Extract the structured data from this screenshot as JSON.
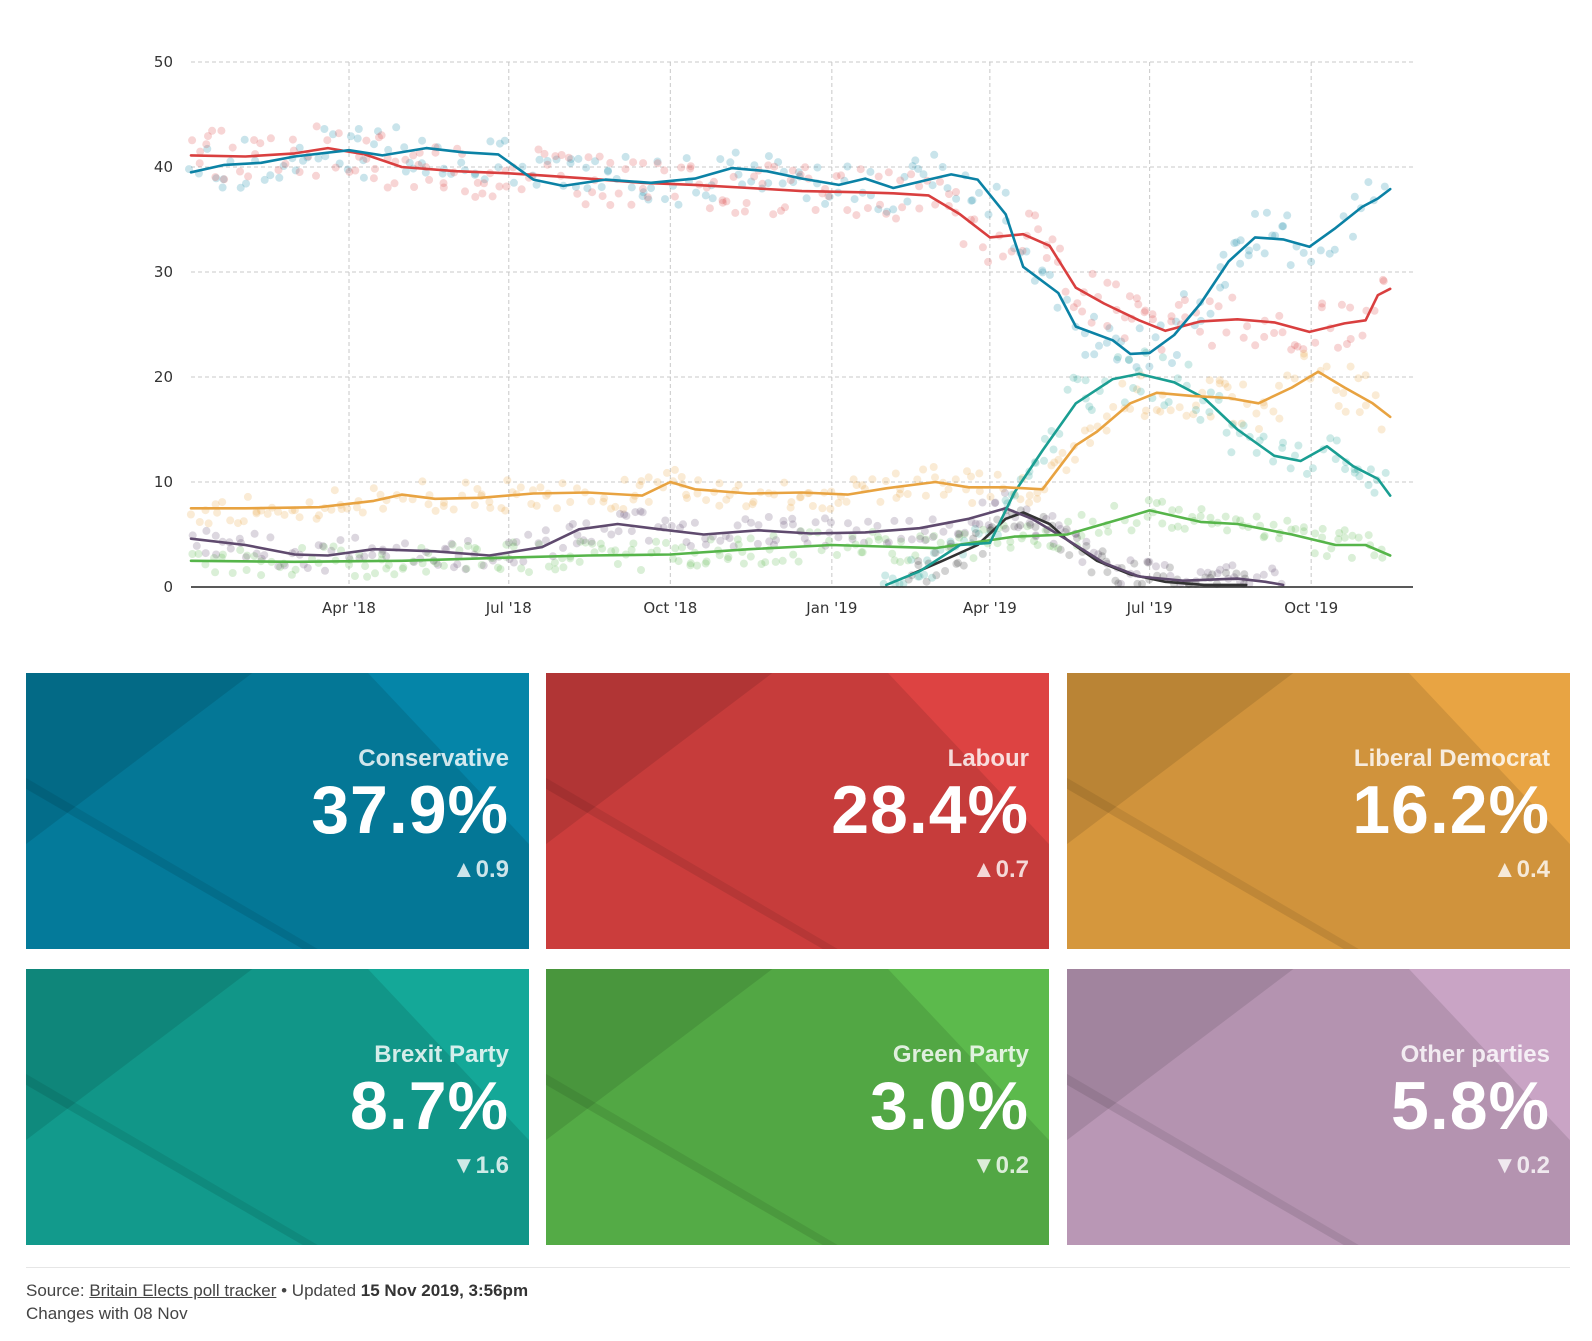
{
  "chart_data": {
    "type": "line",
    "title": "",
    "xlabel": "",
    "ylabel": "",
    "ylim": [
      0,
      50
    ],
    "xlim": [
      "2018-01-01",
      "2019-11-28"
    ],
    "yticks": [
      0,
      10,
      20,
      30,
      40,
      50
    ],
    "xticks": [
      {
        "date": "2018-04-01",
        "label": "Apr '18"
      },
      {
        "date": "2018-07-01",
        "label": "Jul '18"
      },
      {
        "date": "2018-10-01",
        "label": "Oct '18"
      },
      {
        "date": "2019-01-01",
        "label": "Jan '19"
      },
      {
        "date": "2019-04-01",
        "label": "Apr '19"
      },
      {
        "date": "2019-07-01",
        "label": "Jul '19"
      },
      {
        "date": "2019-10-01",
        "label": "Oct '19"
      }
    ],
    "grid": true,
    "legend": "none",
    "series": [
      {
        "color": "#0b82a5",
        "values": [
          [
            "2018-01-01",
            39.5
          ],
          [
            "2018-01-20",
            40.2
          ],
          [
            "2018-02-10",
            40.4
          ],
          [
            "2018-03-01",
            41.0
          ],
          [
            "2018-04-01",
            41.6
          ],
          [
            "2018-04-20",
            41.1
          ],
          [
            "2018-05-15",
            41.8
          ],
          [
            "2018-06-05",
            41.4
          ],
          [
            "2018-06-25",
            41.2
          ],
          [
            "2018-07-15",
            38.8
          ],
          [
            "2018-08-01",
            38.2
          ],
          [
            "2018-08-25",
            38.8
          ],
          [
            "2018-09-20",
            38.5
          ],
          [
            "2018-10-15",
            38.9
          ],
          [
            "2018-11-05",
            39.9
          ],
          [
            "2018-11-25",
            39.6
          ],
          [
            "2018-12-15",
            38.9
          ],
          [
            "2019-01-05",
            38.3
          ],
          [
            "2019-01-20",
            38.9
          ],
          [
            "2019-02-05",
            38.0
          ],
          [
            "2019-02-25",
            38.8
          ],
          [
            "2019-03-10",
            39.3
          ],
          [
            "2019-03-25",
            38.8
          ],
          [
            "2019-04-10",
            35.5
          ],
          [
            "2019-04-20",
            30.5
          ],
          [
            "2019-05-10",
            28.0
          ],
          [
            "2019-05-20",
            24.8
          ],
          [
            "2019-06-10",
            23.5
          ],
          [
            "2019-06-20",
            22.2
          ],
          [
            "2019-07-01",
            22.3
          ],
          [
            "2019-07-15",
            24.0
          ],
          [
            "2019-07-30",
            27.0
          ],
          [
            "2019-08-15",
            31.0
          ],
          [
            "2019-08-30",
            33.3
          ],
          [
            "2019-09-15",
            33.1
          ],
          [
            "2019-09-30",
            32.4
          ],
          [
            "2019-10-15",
            34.2
          ],
          [
            "2019-10-30",
            36.2
          ],
          [
            "2019-11-08",
            37.0
          ],
          [
            "2019-11-15",
            37.9
          ]
        ]
      },
      {
        "color": "#d93f3f",
        "values": [
          [
            "2018-01-01",
            41.1
          ],
          [
            "2018-02-01",
            41.0
          ],
          [
            "2018-03-01",
            41.3
          ],
          [
            "2018-03-20",
            41.8
          ],
          [
            "2018-04-10",
            41.2
          ],
          [
            "2018-05-01",
            40.0
          ],
          [
            "2018-06-01",
            39.6
          ],
          [
            "2018-07-01",
            39.4
          ],
          [
            "2018-07-20",
            39.2
          ],
          [
            "2018-08-15",
            38.9
          ],
          [
            "2018-09-15",
            38.5
          ],
          [
            "2018-10-15",
            38.3
          ],
          [
            "2018-11-15",
            38.0
          ],
          [
            "2018-12-15",
            37.7
          ],
          [
            "2019-01-15",
            37.6
          ],
          [
            "2019-02-05",
            37.5
          ],
          [
            "2019-02-25",
            37.3
          ],
          [
            "2019-03-15",
            35.5
          ],
          [
            "2019-04-01",
            33.3
          ],
          [
            "2019-04-20",
            33.6
          ],
          [
            "2019-05-05",
            32.5
          ],
          [
            "2019-05-20",
            28.5
          ],
          [
            "2019-06-05",
            27.0
          ],
          [
            "2019-06-25",
            25.4
          ],
          [
            "2019-07-10",
            24.4
          ],
          [
            "2019-07-30",
            25.3
          ],
          [
            "2019-08-20",
            25.5
          ],
          [
            "2019-09-10",
            25.2
          ],
          [
            "2019-09-30",
            24.3
          ],
          [
            "2019-10-20",
            25.1
          ],
          [
            "2019-11-01",
            25.4
          ],
          [
            "2019-11-08",
            27.8
          ],
          [
            "2019-11-15",
            28.4
          ]
        ]
      },
      {
        "color": "#e8a341",
        "values": [
          [
            "2018-01-01",
            7.5
          ],
          [
            "2018-02-01",
            7.5
          ],
          [
            "2018-03-15",
            7.6
          ],
          [
            "2018-04-15",
            8.2
          ],
          [
            "2018-05-01",
            8.8
          ],
          [
            "2018-05-20",
            8.4
          ],
          [
            "2018-06-15",
            8.5
          ],
          [
            "2018-07-15",
            8.9
          ],
          [
            "2018-08-15",
            9.0
          ],
          [
            "2018-09-15",
            8.7
          ],
          [
            "2018-10-01",
            10.0
          ],
          [
            "2018-10-15",
            9.3
          ],
          [
            "2018-11-15",
            8.9
          ],
          [
            "2018-12-15",
            9.0
          ],
          [
            "2019-01-10",
            8.8
          ],
          [
            "2019-02-01",
            9.4
          ],
          [
            "2019-03-01",
            10.0
          ],
          [
            "2019-03-20",
            9.5
          ],
          [
            "2019-04-10",
            9.5
          ],
          [
            "2019-05-01",
            9.3
          ],
          [
            "2019-05-20",
            13.5
          ],
          [
            "2019-06-01",
            14.8
          ],
          [
            "2019-06-20",
            17.5
          ],
          [
            "2019-07-05",
            18.5
          ],
          [
            "2019-07-25",
            18.2
          ],
          [
            "2019-08-15",
            18.0
          ],
          [
            "2019-09-01",
            17.5
          ],
          [
            "2019-09-20",
            19.0
          ],
          [
            "2019-10-05",
            20.5
          ],
          [
            "2019-10-20",
            19.0
          ],
          [
            "2019-11-05",
            17.5
          ],
          [
            "2019-11-15",
            16.2
          ]
        ]
      },
      {
        "color": "#1a9e92",
        "values": [
          [
            "2019-02-01",
            0.2
          ],
          [
            "2019-02-20",
            1.5
          ],
          [
            "2019-03-15",
            4.0
          ],
          [
            "2019-04-01",
            4.2
          ],
          [
            "2019-04-15",
            9.0
          ],
          [
            "2019-05-01",
            13.0
          ],
          [
            "2019-05-20",
            17.5
          ],
          [
            "2019-06-10",
            19.8
          ],
          [
            "2019-06-25",
            20.3
          ],
          [
            "2019-07-15",
            19.5
          ],
          [
            "2019-08-01",
            18.0
          ],
          [
            "2019-08-20",
            15.0
          ],
          [
            "2019-09-10",
            12.5
          ],
          [
            "2019-09-25",
            12.0
          ],
          [
            "2019-10-10",
            13.4
          ],
          [
            "2019-10-25",
            11.5
          ],
          [
            "2019-11-08",
            10.3
          ],
          [
            "2019-11-15",
            8.7
          ]
        ]
      },
      {
        "color": "#56b54a",
        "values": [
          [
            "2018-01-01",
            2.5
          ],
          [
            "2018-03-01",
            2.4
          ],
          [
            "2018-05-01",
            2.5
          ],
          [
            "2018-07-01",
            2.8
          ],
          [
            "2018-08-15",
            3.0
          ],
          [
            "2018-10-01",
            3.1
          ],
          [
            "2018-11-15",
            3.6
          ],
          [
            "2019-01-01",
            4.0
          ],
          [
            "2019-03-01",
            3.7
          ],
          [
            "2019-04-15",
            4.8
          ],
          [
            "2019-05-15",
            5.0
          ],
          [
            "2019-06-15",
            6.5
          ],
          [
            "2019-07-01",
            7.3
          ],
          [
            "2019-07-30",
            6.2
          ],
          [
            "2019-08-20",
            6.0
          ],
          [
            "2019-09-20",
            5.0
          ],
          [
            "2019-10-15",
            4.0
          ],
          [
            "2019-11-01",
            4.0
          ],
          [
            "2019-11-15",
            3.0
          ]
        ]
      },
      {
        "color": "#5f4a6e",
        "values": [
          [
            "2018-01-01",
            4.6
          ],
          [
            "2018-02-01",
            4.0
          ],
          [
            "2018-03-01",
            3.1
          ],
          [
            "2018-03-20",
            3.0
          ],
          [
            "2018-04-15",
            3.6
          ],
          [
            "2018-05-20",
            3.4
          ],
          [
            "2018-06-20",
            3.0
          ],
          [
            "2018-07-20",
            3.8
          ],
          [
            "2018-08-10",
            5.5
          ],
          [
            "2018-09-01",
            6.0
          ],
          [
            "2018-09-25",
            5.5
          ],
          [
            "2018-10-20",
            5.0
          ],
          [
            "2018-11-20",
            5.4
          ],
          [
            "2018-12-20",
            5.1
          ],
          [
            "2019-01-20",
            5.2
          ],
          [
            "2019-02-20",
            5.6
          ],
          [
            "2019-03-20",
            6.5
          ],
          [
            "2019-04-10",
            7.5
          ],
          [
            "2019-04-25",
            6.5
          ],
          [
            "2019-05-15",
            4.5
          ],
          [
            "2019-06-05",
            2.3
          ],
          [
            "2019-06-25",
            1.0
          ],
          [
            "2019-07-20",
            0.6
          ],
          [
            "2019-08-20",
            0.8
          ],
          [
            "2019-09-05",
            0.5
          ],
          [
            "2019-09-15",
            0.2
          ]
        ]
      },
      {
        "color": "#333333",
        "values": [
          [
            "2019-02-15",
            1.2
          ],
          [
            "2019-03-05",
            2.5
          ],
          [
            "2019-03-25",
            4.0
          ],
          [
            "2019-04-10",
            6.5
          ],
          [
            "2019-04-20",
            7.1
          ],
          [
            "2019-05-05",
            6.0
          ],
          [
            "2019-05-15",
            4.5
          ],
          [
            "2019-06-01",
            2.5
          ],
          [
            "2019-06-20",
            1.2
          ],
          [
            "2019-07-10",
            0.5
          ],
          [
            "2019-08-01",
            0.2
          ],
          [
            "2019-08-25",
            0.2
          ]
        ]
      }
    ]
  },
  "cards": [
    {
      "party": "Conservative",
      "value": "37.9%",
      "change": "▲0.9",
      "color": "#0585a8"
    },
    {
      "party": "Labour",
      "value": "28.4%",
      "change": "▲0.7",
      "color": "#dd4342"
    },
    {
      "party": "Liberal Democrat",
      "value": "16.2%",
      "change": "▲0.4",
      "color": "#e8a443"
    },
    {
      "party": "Brexit Party",
      "value": "8.7%",
      "change": "▼1.6",
      "color": "#14a898"
    },
    {
      "party": "Green Party",
      "value": "3.0%",
      "change": "▼0.2",
      "color": "#5cba4c"
    },
    {
      "party": "Other parties",
      "value": "5.8%",
      "change": "▼0.2",
      "color": "#c9a4c5"
    }
  ],
  "footer": {
    "source_prefix": "Source: ",
    "source_link": "Britain Elects poll tracker",
    "updated_prefix": " • Updated ",
    "updated_value": "15 Nov 2019, 3:56pm",
    "changes": "Changes with 08 Nov"
  }
}
